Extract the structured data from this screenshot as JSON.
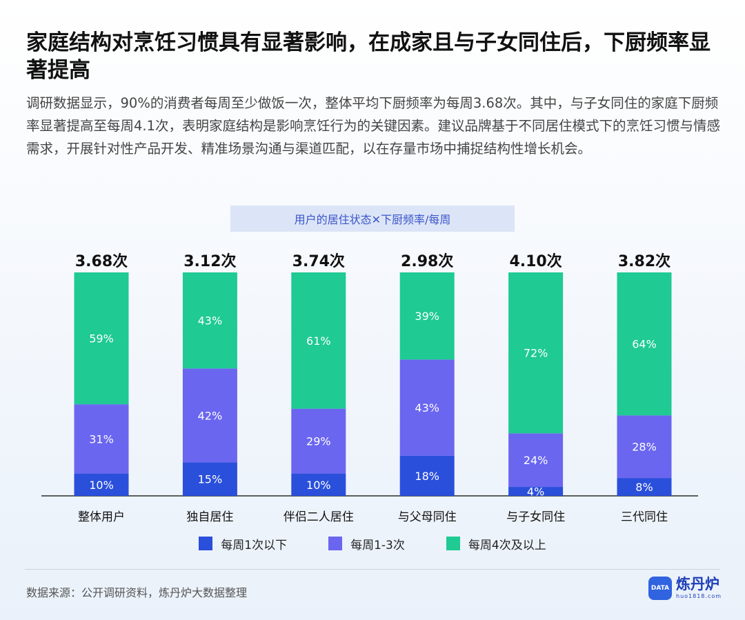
{
  "title": "家庭结构对烹饪习惯具有显著影响，在成家且与子女同住后，下厨频率显著提高",
  "description": "调研数据显示，90%的消费者每周至少做饭一次，整体平均下厨频率为每周3.68次。其中，与子女同住的家庭下厨频率显著提高至每周4.1次，表明家庭结构是影响烹饪行为的关键因素。建议品牌基于不同居住模式下的烹饪习惯与情感需求，开展针对性产品开发、精准场景沟通与渠道匹配，以在存量市场中捕捉结构性增长机会。",
  "chart_header": "用户的居住状态✕下厨频率/每周",
  "colors": {
    "below_once": "#2a4fdb",
    "one_to_three": "#6a66f0",
    "four_plus": "#1fca93",
    "header_bg": "#dce5f7"
  },
  "chart_data": {
    "type": "bar",
    "stacked": true,
    "percent": true,
    "categories": [
      "整体用户",
      "独自居住",
      "伴侣二人居住",
      "与父母同住",
      "与子女同住",
      "三代同住"
    ],
    "totals": [
      "3.68次",
      "3.12次",
      "3.74次",
      "2.98次",
      "4.10次",
      "3.82次"
    ],
    "series": [
      {
        "name": "每周1次以下",
        "values": [
          10,
          15,
          10,
          18,
          4,
          8
        ]
      },
      {
        "name": "每周1-3次",
        "values": [
          31,
          42,
          29,
          43,
          24,
          28
        ]
      },
      {
        "name": "每周4次及以上",
        "values": [
          59,
          43,
          61,
          39,
          72,
          64
        ]
      }
    ],
    "value_suffix": "%",
    "ylim": [
      0,
      100
    ],
    "legend_position": "bottom"
  },
  "legend": [
    {
      "label": "每周1次以下"
    },
    {
      "label": "每周1-3次"
    },
    {
      "label": "每周4次及以上"
    }
  ],
  "source": "数据来源：公开调研资料，炼丹炉大数据整理",
  "brand": {
    "name": "炼丹炉",
    "url": "huo1818.com",
    "logo_text": "DATA"
  }
}
